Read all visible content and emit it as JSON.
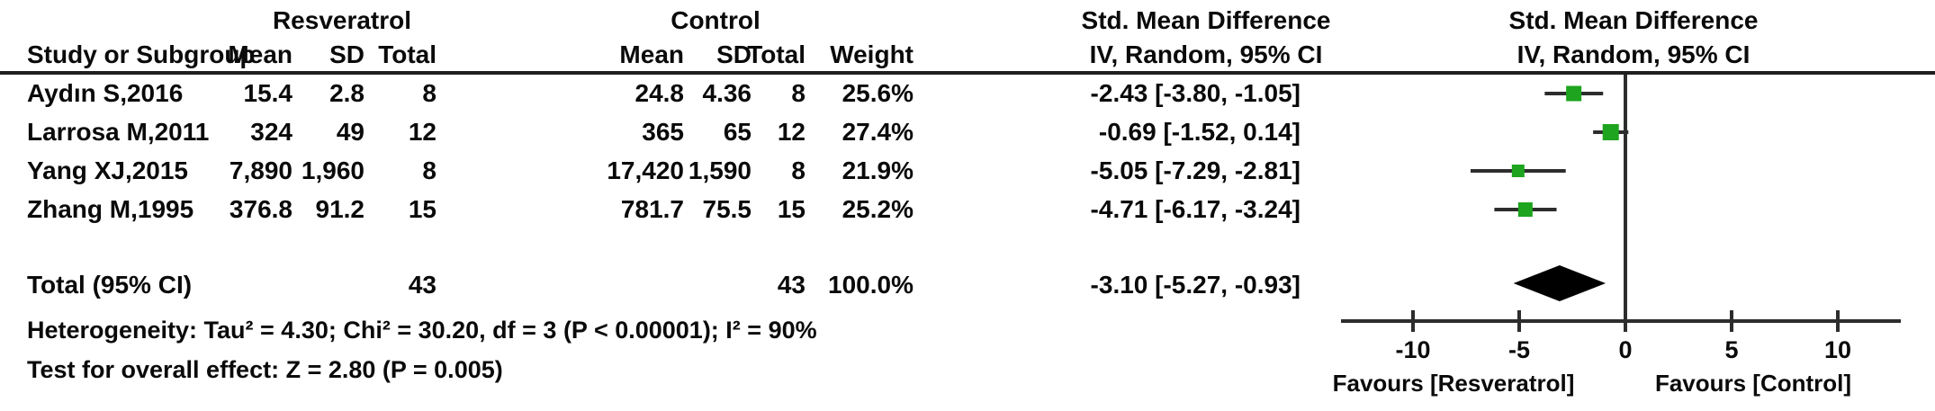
{
  "table": {
    "group_headers": {
      "treatment": "Resveratrol",
      "control": "Control",
      "smd_left": "Std. Mean Difference",
      "smd_right": "Std. Mean Difference"
    },
    "column_headers": {
      "study": "Study or Subgroup",
      "mean": "Mean",
      "sd": "SD",
      "total": "Total",
      "weight": "Weight",
      "ci_left": "IV, Random, 95% CI",
      "ci_right": "IV, Random, 95% CI"
    },
    "rows": [
      {
        "study": "Aydın S,2016",
        "t_mean": "15.4",
        "t_sd": "2.8",
        "t_total": "8",
        "c_mean": "24.8",
        "c_sd": "4.36",
        "c_total": "8",
        "weight": "25.6%",
        "ci_text": "-2.43 [-3.80, -1.05]"
      },
      {
        "study": "Larrosa M,2011",
        "t_mean": "324",
        "t_sd": "49",
        "t_total": "12",
        "c_mean": "365",
        "c_sd": "65",
        "c_total": "12",
        "weight": "27.4%",
        "ci_text": "-0.69 [-1.52, 0.14]"
      },
      {
        "study": "Yang XJ,2015",
        "t_mean": "7,890",
        "t_sd": "1,960",
        "t_total": "8",
        "c_mean": "17,420",
        "c_sd": "1,590",
        "c_total": "8",
        "weight": "21.9%",
        "ci_text": "-5.05 [-7.29, -2.81]"
      },
      {
        "study": "Zhang M,1995",
        "t_mean": "376.8",
        "t_sd": "91.2",
        "t_total": "15",
        "c_mean": "781.7",
        "c_sd": "75.5",
        "c_total": "15",
        "weight": "25.2%",
        "ci_text": "-4.71 [-6.17, -3.24]"
      }
    ],
    "total_row": {
      "label": "Total (95% CI)",
      "t_total": "43",
      "c_total": "43",
      "weight": "100.0%",
      "ci_text": "-3.10 [-5.27, -0.93]"
    },
    "footnotes": {
      "heterogeneity": "Heterogeneity: Tau² = 4.30; Chi² = 30.20, df = 3 (P < 0.00001); I² = 90%",
      "overall_effect": "Test for overall effect: Z = 2.80 (P = 0.005)"
    }
  },
  "chart_data": {
    "type": "forest",
    "effect_measure": "Std. Mean Difference",
    "method": "IV, Random, 95% CI",
    "studies": [
      {
        "name": "Aydın S,2016",
        "estimate": -2.43,
        "ci_low": -3.8,
        "ci_high": -1.05,
        "weight": 25.6
      },
      {
        "name": "Larrosa M,2011",
        "estimate": -0.69,
        "ci_low": -1.52,
        "ci_high": 0.14,
        "weight": 27.4
      },
      {
        "name": "Yang XJ,2015",
        "estimate": -5.05,
        "ci_low": -7.29,
        "ci_high": -2.81,
        "weight": 21.9
      },
      {
        "name": "Zhang M,1995",
        "estimate": -4.71,
        "ci_low": -6.17,
        "ci_high": -3.24,
        "weight": 25.2
      }
    ],
    "total": {
      "estimate": -3.1,
      "ci_low": -5.27,
      "ci_high": -0.93
    },
    "x_ticks": [
      "-10",
      "-5",
      "0",
      "5",
      "10"
    ],
    "x_tick_values": [
      -10,
      -5,
      0,
      5,
      10
    ],
    "x_range": [
      -13.4,
      13
    ],
    "axis_labels": {
      "left": "Favours [Resveratrol]",
      "right": "Favours [Control]"
    },
    "marker_color": "#1EA41E",
    "line_color": "#2d2d2d"
  }
}
